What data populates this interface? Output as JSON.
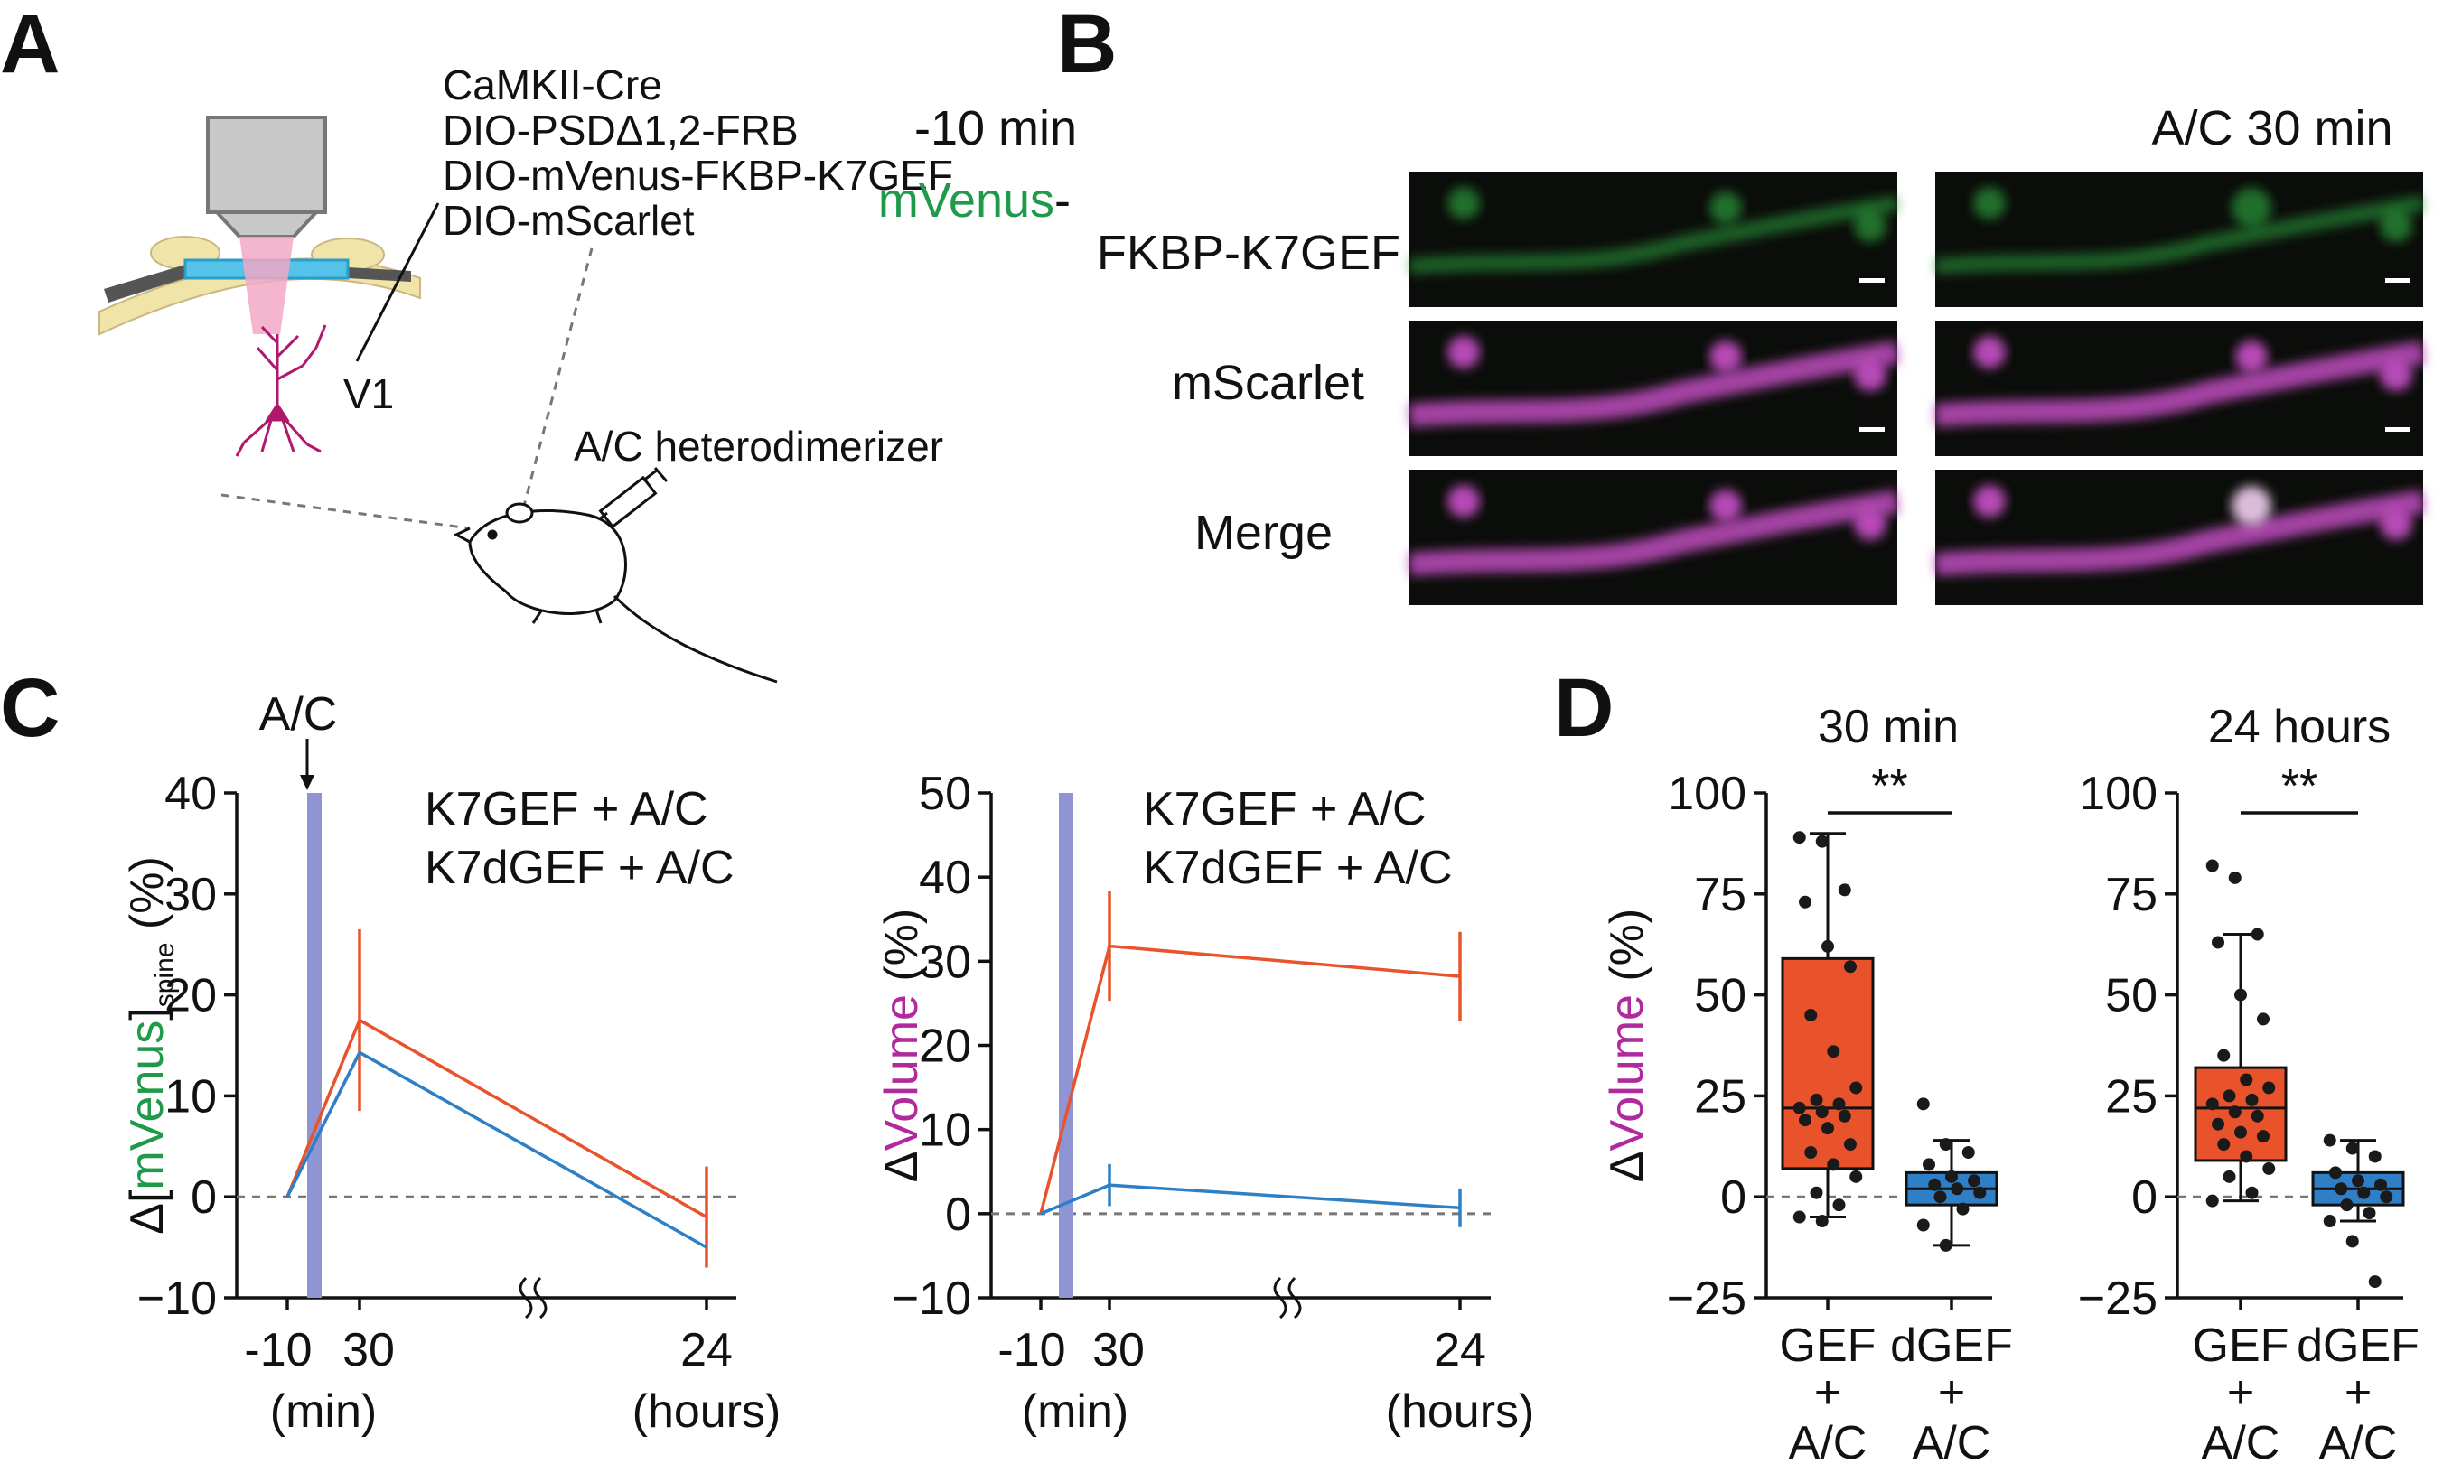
{
  "panel_labels": {
    "a": "A",
    "b": "B",
    "c": "C",
    "d": "D"
  },
  "panel_a": {
    "constructs": [
      "CaMKII-Cre",
      "DIO-PSDΔ1,2-FRB",
      "DIO-mVenus-FKBP-K7GEF",
      "DIO-mScarlet"
    ],
    "region": "V1",
    "injection": "A/C heterodimerizer"
  },
  "panel_b": {
    "columns": [
      "-10 min",
      "A/C 30 min"
    ],
    "rows": [
      {
        "label_colored": "mVenus",
        "label_suffix": "-",
        "label_line2": "FKBP-K7GEF",
        "color": "#1e9a4a"
      },
      {
        "label": "mScarlet",
        "color": "#b02a9e"
      },
      {
        "label": "Merge",
        "color": "#111111"
      }
    ]
  },
  "colors": {
    "gef": "#e9532b",
    "dgef": "#2f7fc6",
    "ac_bar": "#8f94d4",
    "ac_text": "#1f8aa0",
    "green": "#1e9a4a",
    "magenta": "#b02a9e"
  },
  "panel_c": {
    "ac_label": "A/C",
    "ylabel_left": {
      "delta": "Δ[",
      "mvenus": "mVenus",
      "close": "]",
      "sub": "spine",
      "unit": "(%)"
    },
    "ylabel_right": {
      "delta": "Δ",
      "volume": "Volume",
      "unit": "(%)"
    },
    "xunit_min": "(min)",
    "xunit_hours": "(hours)"
  },
  "panel_d": {
    "ylabel": {
      "delta": "Δ",
      "volume": "Volume",
      "unit": "(%)"
    },
    "sig": "**",
    "xcat_line1": [
      "GEF",
      "dGEF"
    ],
    "xcat_line2": "+",
    "xcat_line3": "A/C"
  },
  "chart_data": [
    {
      "type": "line",
      "x": [
        "-10",
        "30",
        "24"
      ],
      "xlabel": "(min) / (hours)",
      "ylabel": "Δ[mVenus]spine (%)",
      "ylim": [
        -10,
        40
      ],
      "yticks": [
        -10,
        0,
        10,
        20,
        30,
        40
      ],
      "series": [
        {
          "name": "K7GEF + A/C",
          "values": [
            0,
            17.5,
            -2
          ],
          "err": [
            0,
            9,
            5
          ]
        },
        {
          "name": "K7dGEF + A/C",
          "values": [
            0,
            14.3,
            -5
          ],
          "err": [
            0,
            0,
            0
          ]
        }
      ]
    },
    {
      "type": "line",
      "x": [
        "-10",
        "30",
        "24"
      ],
      "xlabel": "(min) / (hours)",
      "ylabel": "ΔVolume (%)",
      "ylim": [
        -10,
        50
      ],
      "yticks": [
        -10,
        0,
        10,
        20,
        30,
        40,
        50
      ],
      "series": [
        {
          "name": "K7GEF + A/C",
          "values": [
            0,
            31.8,
            28.2
          ],
          "err": [
            0,
            6.5,
            5.3
          ]
        },
        {
          "name": "K7dGEF + A/C",
          "values": [
            0,
            3.4,
            0.7
          ],
          "err": [
            0,
            2.5,
            2.3
          ]
        }
      ]
    },
    {
      "type": "box",
      "title": "30 min",
      "categories": [
        "GEF + A/C",
        "dGEF + A/C"
      ],
      "ylabel": "ΔVolume (%)",
      "ylim": [
        -25,
        100
      ],
      "yticks": [
        -25,
        0,
        25,
        50,
        75,
        100
      ],
      "boxes": [
        {
          "min": -5,
          "q1": 7,
          "median": 22,
          "q3": 59,
          "max": 90,
          "points": [
            89,
            88,
            76,
            73,
            62,
            57,
            45,
            36,
            27,
            24,
            23,
            22,
            21,
            20,
            19,
            17,
            13,
            11,
            8,
            5,
            1,
            -2,
            -5,
            -6
          ]
        },
        {
          "min": -12,
          "q1": -2,
          "median": 2,
          "q3": 6,
          "max": 14,
          "points": [
            23,
            13,
            11,
            8,
            5,
            4,
            3,
            2,
            1,
            0,
            -3,
            -7,
            -12
          ]
        }
      ]
    },
    {
      "type": "box",
      "title": "24 hours",
      "categories": [
        "GEF + A/C",
        "dGEF + A/C"
      ],
      "ylabel": "ΔVolume (%)",
      "ylim": [
        -25,
        100
      ],
      "yticks": [
        -25,
        0,
        25,
        50,
        75,
        100
      ],
      "boxes": [
        {
          "min": -1,
          "q1": 9,
          "median": 22,
          "q3": 32,
          "max": 65,
          "points": [
            82,
            79,
            65,
            63,
            50,
            44,
            35,
            29,
            27,
            25,
            24,
            23,
            21,
            20,
            18,
            16,
            15,
            13,
            10,
            7,
            5,
            1,
            -1
          ]
        },
        {
          "min": -6,
          "q1": -2,
          "median": 2,
          "q3": 6,
          "max": 14,
          "points": [
            14,
            12,
            10,
            6,
            4,
            3,
            2,
            1,
            0,
            -2,
            -4,
            -6,
            -11,
            -21
          ]
        }
      ]
    }
  ]
}
